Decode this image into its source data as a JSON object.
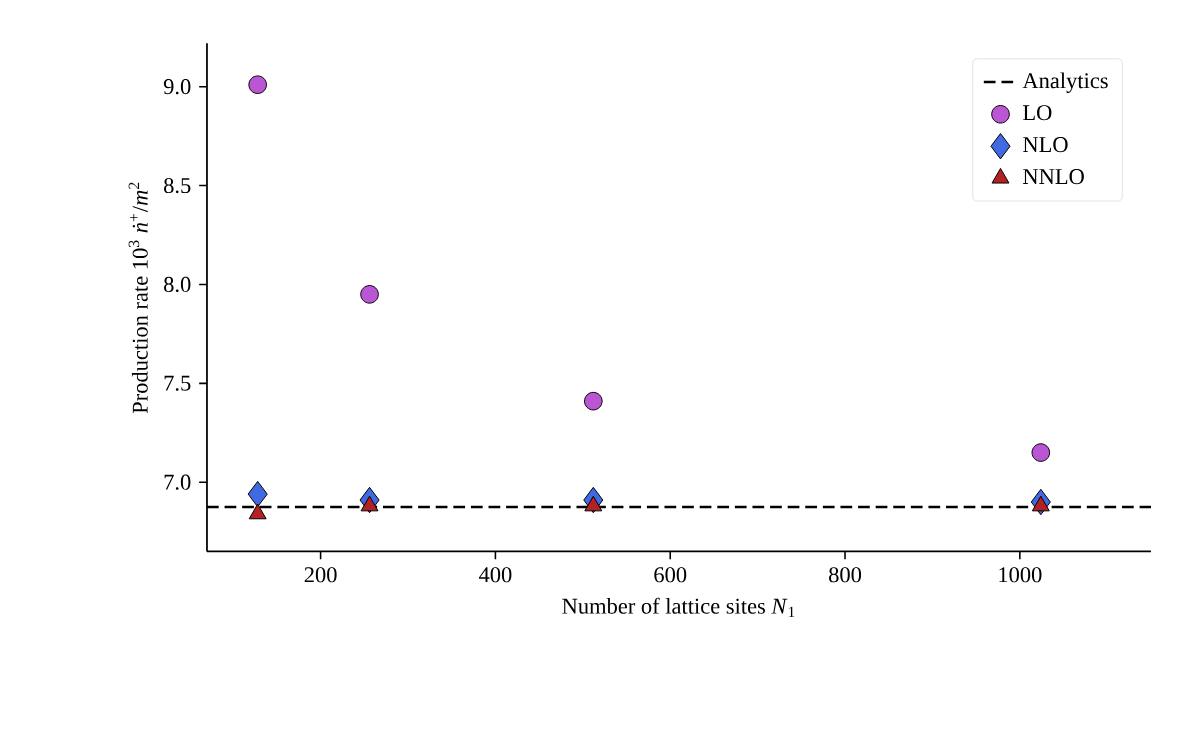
{
  "chart_data": {
    "type": "scatter",
    "xlabel": "Number of lattice sites *N*$_{1}$",
    "ylabel": "Production rate 10$^{3}$ *ṅ*$^{+}$/*m*$^{2}$",
    "x": [
      128,
      256,
      512,
      1024
    ],
    "series": [
      {
        "name": "LO",
        "color": "#ba55d3",
        "marker": "circle",
        "values": [
          9.01,
          7.95,
          7.41,
          7.15
        ]
      },
      {
        "name": "NLO",
        "color": "#4169e1",
        "marker": "diamond",
        "values": [
          6.94,
          6.91,
          6.91,
          6.9
        ]
      },
      {
        "name": "NNLO",
        "color": "#b22222",
        "marker": "triangle",
        "values": [
          6.84,
          6.88,
          6.88,
          6.88
        ]
      }
    ],
    "ref_lines": [
      {
        "axis": "y",
        "value": 6.875,
        "label": "Analytics",
        "color": "#000000",
        "line_style": "dashed"
      }
    ],
    "xlim": [
      70,
      1150
    ],
    "ylim": [
      6.65,
      9.22
    ],
    "xticks": [
      200,
      400,
      600,
      800,
      1000
    ],
    "yticks": [
      {
        "value": 7,
        "label": "7.0"
      },
      {
        "value": 7.5,
        "label": "7.5"
      },
      {
        "value": 8,
        "label": "8.0"
      },
      {
        "value": 8.5,
        "label": "8.5"
      },
      {
        "value": 9,
        "label": "9.0"
      }
    ],
    "grid": false,
    "legend": "top right"
  }
}
